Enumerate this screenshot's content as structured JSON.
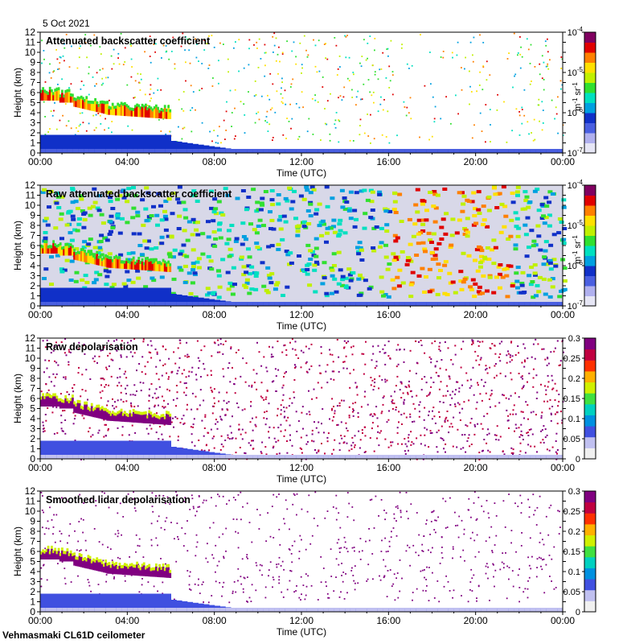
{
  "date_label": "5 Oct 2021",
  "footer_label": "Vehmasmaki CL61D ceilometer",
  "colors": {
    "backscatter_scale": [
      "#e6e6f5",
      "#b0b0ee",
      "#4a5fe0",
      "#1030c8",
      "#00a0e0",
      "#00e0c0",
      "#30e030",
      "#c0f000",
      "#ffe000",
      "#ff8000",
      "#e00000",
      "#800060"
    ],
    "depol_scale": [
      "#f0f0f0",
      "#c0c0f0",
      "#4050e0",
      "#0090e0",
      "#00d0c0",
      "#40e040",
      "#d0f000",
      "#ffb000",
      "#ff3000",
      "#c00040",
      "#800080"
    ]
  },
  "chart_data": [
    {
      "type": "heatmap",
      "title": "Attenuated backscatter coefficient",
      "xlabel": "Time (UTC)",
      "ylabel": "Height (km)",
      "x_ticks": [
        "00:00",
        "04:00",
        "08:00",
        "12:00",
        "16:00",
        "20:00",
        "00:00"
      ],
      "xlim_hours": [
        0,
        24
      ],
      "ylim": [
        0,
        12
      ],
      "y_ticks": [
        "0",
        "1",
        "2",
        "3",
        "4",
        "5",
        "6",
        "7",
        "8",
        "9",
        "10",
        "11",
        "12"
      ],
      "colorbar": {
        "scale": "log",
        "range": [
          1e-07,
          0.0001
        ],
        "ticks": [
          "10",
          "10",
          "10",
          "10"
        ],
        "tick_exponents": [
          "-7",
          "-6",
          "-5",
          "-4"
        ],
        "unit": "m",
        "unit_exp1": "-1",
        "unit_mid": " sr",
        "unit_exp2": "-1"
      }
    },
    {
      "type": "heatmap",
      "title": "Raw attenuated backscatter coefficient",
      "xlabel": "Time (UTC)",
      "ylabel": "Height (km)",
      "x_ticks": [
        "00:00",
        "04:00",
        "08:00",
        "12:00",
        "16:00",
        "20:00",
        "00:00"
      ],
      "xlim_hours": [
        0,
        24
      ],
      "ylim": [
        0,
        12
      ],
      "y_ticks": [
        "0",
        "1",
        "2",
        "3",
        "4",
        "5",
        "6",
        "7",
        "8",
        "9",
        "10",
        "11",
        "12"
      ],
      "colorbar": {
        "scale": "log",
        "range": [
          1e-07,
          0.0001
        ],
        "ticks": [
          "10",
          "10",
          "10",
          "10"
        ],
        "tick_exponents": [
          "-7",
          "-6",
          "-5",
          "-4"
        ],
        "unit": "m",
        "unit_exp1": "-1",
        "unit_mid": " sr",
        "unit_exp2": "-1"
      }
    },
    {
      "type": "heatmap",
      "title": "Raw depolarisation",
      "xlabel": "Time (UTC)",
      "ylabel": "Height (km)",
      "x_ticks": [
        "00:00",
        "04:00",
        "08:00",
        "12:00",
        "16:00",
        "20:00",
        "00:00"
      ],
      "xlim_hours": [
        0,
        24
      ],
      "ylim": [
        0,
        12
      ],
      "y_ticks": [
        "0",
        "1",
        "2",
        "3",
        "4",
        "5",
        "6",
        "7",
        "8",
        "9",
        "10",
        "11",
        "12"
      ],
      "colorbar": {
        "scale": "linear",
        "range": [
          0,
          0.3
        ],
        "ticks": [
          "0",
          "0.05",
          "0.1",
          "0.15",
          "0.2",
          "0.25",
          "0.3"
        ]
      }
    },
    {
      "type": "heatmap",
      "title": "Smoothed lidar depolarisation",
      "xlabel": "Time (UTC)",
      "ylabel": "Height (km)",
      "x_ticks": [
        "00:00",
        "04:00",
        "08:00",
        "12:00",
        "16:00",
        "20:00",
        "00:00"
      ],
      "xlim_hours": [
        0,
        24
      ],
      "ylim": [
        0,
        12
      ],
      "y_ticks": [
        "0",
        "1",
        "2",
        "3",
        "4",
        "5",
        "6",
        "7",
        "8",
        "9",
        "10",
        "11",
        "12"
      ],
      "colorbar": {
        "scale": "linear",
        "range": [
          0,
          0.3
        ],
        "ticks": [
          "0",
          "0.05",
          "0.1",
          "0.15",
          "0.2",
          "0.25",
          "0.3"
        ]
      }
    }
  ]
}
